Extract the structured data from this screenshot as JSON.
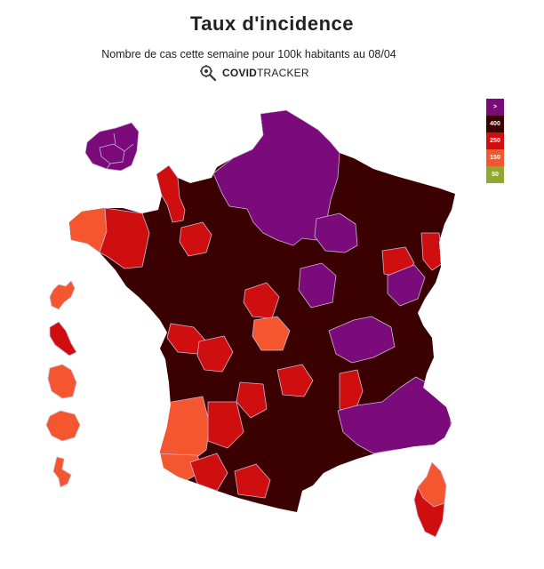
{
  "header": {
    "title": "Taux d'incidence",
    "subtitle": "Nombre de cas cette semaine pour 100k habitants au 08/04",
    "brand_bold": "COVID",
    "brand_light": "TRACKER",
    "brand_icon": "magnifier-virus-icon"
  },
  "legend": {
    "items": [
      {
        "label": ">",
        "color": "#7b0a7b"
      },
      {
        "label": "400",
        "color": "#3b0000"
      },
      {
        "label": "250",
        "color": "#cf0f0f"
      },
      {
        "label": "150",
        "color": "#f4572f"
      },
      {
        "label": "50",
        "color": "#8fa832"
      }
    ]
  },
  "colors": {
    "purple": "#7b0a7b",
    "darkred": "#3b0000",
    "red": "#cf0f0f",
    "orange": "#f4572f",
    "border": "#c9b6d6"
  }
}
